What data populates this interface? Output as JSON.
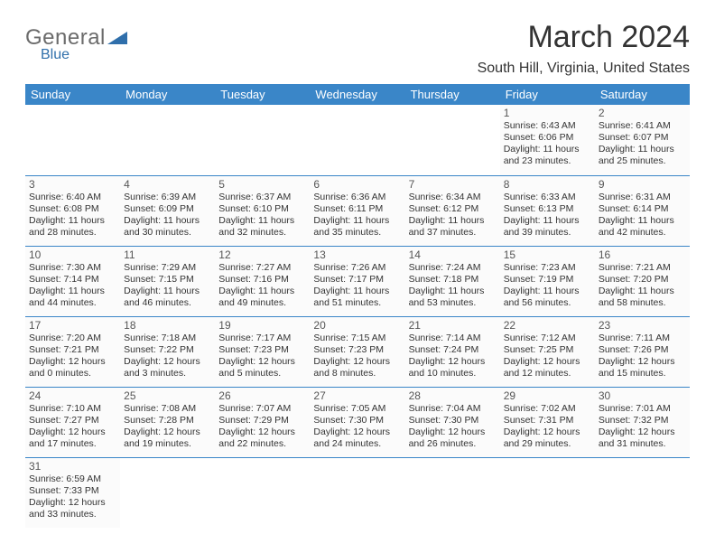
{
  "logo": {
    "gray": "General",
    "blue": "Blue"
  },
  "title": "March 2024",
  "location": "South Hill, Virginia, United States",
  "colors": {
    "header_bg": "#3a86c8",
    "header_fg": "#ffffff",
    "border": "#3a86c8",
    "cell_bg": "#fbfbfb",
    "page_bg": "#ffffff",
    "text": "#333333",
    "logo_gray": "#6b6b6b",
    "logo_blue": "#2f6fab"
  },
  "day_headers": [
    "Sunday",
    "Monday",
    "Tuesday",
    "Wednesday",
    "Thursday",
    "Friday",
    "Saturday"
  ],
  "weeks": [
    [
      null,
      null,
      null,
      null,
      null,
      {
        "n": "1",
        "sr": "6:43 AM",
        "ss": "6:06 PM",
        "dh": "11",
        "dm": "23"
      },
      {
        "n": "2",
        "sr": "6:41 AM",
        "ss": "6:07 PM",
        "dh": "11",
        "dm": "25"
      }
    ],
    [
      {
        "n": "3",
        "sr": "6:40 AM",
        "ss": "6:08 PM",
        "dh": "11",
        "dm": "28"
      },
      {
        "n": "4",
        "sr": "6:39 AM",
        "ss": "6:09 PM",
        "dh": "11",
        "dm": "30"
      },
      {
        "n": "5",
        "sr": "6:37 AM",
        "ss": "6:10 PM",
        "dh": "11",
        "dm": "32"
      },
      {
        "n": "6",
        "sr": "6:36 AM",
        "ss": "6:11 PM",
        "dh": "11",
        "dm": "35"
      },
      {
        "n": "7",
        "sr": "6:34 AM",
        "ss": "6:12 PM",
        "dh": "11",
        "dm": "37"
      },
      {
        "n": "8",
        "sr": "6:33 AM",
        "ss": "6:13 PM",
        "dh": "11",
        "dm": "39"
      },
      {
        "n": "9",
        "sr": "6:31 AM",
        "ss": "6:14 PM",
        "dh": "11",
        "dm": "42"
      }
    ],
    [
      {
        "n": "10",
        "sr": "7:30 AM",
        "ss": "7:14 PM",
        "dh": "11",
        "dm": "44"
      },
      {
        "n": "11",
        "sr": "7:29 AM",
        "ss": "7:15 PM",
        "dh": "11",
        "dm": "46"
      },
      {
        "n": "12",
        "sr": "7:27 AM",
        "ss": "7:16 PM",
        "dh": "11",
        "dm": "49"
      },
      {
        "n": "13",
        "sr": "7:26 AM",
        "ss": "7:17 PM",
        "dh": "11",
        "dm": "51"
      },
      {
        "n": "14",
        "sr": "7:24 AM",
        "ss": "7:18 PM",
        "dh": "11",
        "dm": "53"
      },
      {
        "n": "15",
        "sr": "7:23 AM",
        "ss": "7:19 PM",
        "dh": "11",
        "dm": "56"
      },
      {
        "n": "16",
        "sr": "7:21 AM",
        "ss": "7:20 PM",
        "dh": "11",
        "dm": "58"
      }
    ],
    [
      {
        "n": "17",
        "sr": "7:20 AM",
        "ss": "7:21 PM",
        "dh": "12",
        "dm": "0"
      },
      {
        "n": "18",
        "sr": "7:18 AM",
        "ss": "7:22 PM",
        "dh": "12",
        "dm": "3"
      },
      {
        "n": "19",
        "sr": "7:17 AM",
        "ss": "7:23 PM",
        "dh": "12",
        "dm": "5"
      },
      {
        "n": "20",
        "sr": "7:15 AM",
        "ss": "7:23 PM",
        "dh": "12",
        "dm": "8"
      },
      {
        "n": "21",
        "sr": "7:14 AM",
        "ss": "7:24 PM",
        "dh": "12",
        "dm": "10"
      },
      {
        "n": "22",
        "sr": "7:12 AM",
        "ss": "7:25 PM",
        "dh": "12",
        "dm": "12"
      },
      {
        "n": "23",
        "sr": "7:11 AM",
        "ss": "7:26 PM",
        "dh": "12",
        "dm": "15"
      }
    ],
    [
      {
        "n": "24",
        "sr": "7:10 AM",
        "ss": "7:27 PM",
        "dh": "12",
        "dm": "17"
      },
      {
        "n": "25",
        "sr": "7:08 AM",
        "ss": "7:28 PM",
        "dh": "12",
        "dm": "19"
      },
      {
        "n": "26",
        "sr": "7:07 AM",
        "ss": "7:29 PM",
        "dh": "12",
        "dm": "22"
      },
      {
        "n": "27",
        "sr": "7:05 AM",
        "ss": "7:30 PM",
        "dh": "12",
        "dm": "24"
      },
      {
        "n": "28",
        "sr": "7:04 AM",
        "ss": "7:30 PM",
        "dh": "12",
        "dm": "26"
      },
      {
        "n": "29",
        "sr": "7:02 AM",
        "ss": "7:31 PM",
        "dh": "12",
        "dm": "29"
      },
      {
        "n": "30",
        "sr": "7:01 AM",
        "ss": "7:32 PM",
        "dh": "12",
        "dm": "31"
      }
    ],
    [
      {
        "n": "31",
        "sr": "6:59 AM",
        "ss": "7:33 PM",
        "dh": "12",
        "dm": "33"
      },
      null,
      null,
      null,
      null,
      null,
      null
    ]
  ],
  "labels": {
    "sunrise": "Sunrise:",
    "sunset": "Sunset:",
    "daylight": "Daylight:",
    "hours": "hours",
    "and": "and",
    "minutes": "minutes."
  }
}
